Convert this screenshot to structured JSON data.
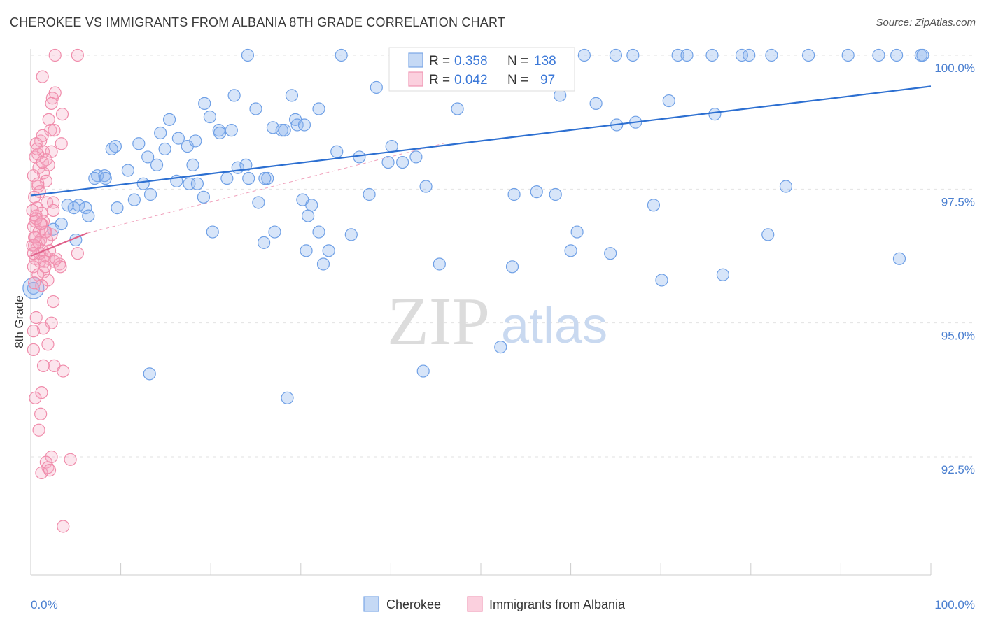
{
  "title": "CHEROKEE VS IMMIGRANTS FROM ALBANIA 8TH GRADE CORRELATION CHART",
  "source": "Source: ZipAtlas.com",
  "watermark": {
    "zip": "ZIP",
    "atlas": "atlas"
  },
  "chart_data": {
    "type": "scatter",
    "title": "CHEROKEE VS IMMIGRANTS FROM ALBANIA 8TH GRADE CORRELATION CHART",
    "xlabel": "",
    "ylabel": "8th Grade",
    "xlim": [
      0,
      100
    ],
    "ylim": [
      90.2,
      100.3
    ],
    "x_tick_labels": [
      "0.0%",
      "100.0%"
    ],
    "y_ticks": [
      92.5,
      95.0,
      97.5,
      100.0
    ],
    "y_tick_labels": [
      "92.5%",
      "95.0%",
      "97.5%",
      "100.0%"
    ],
    "grid": "horizontal-dashed",
    "legend_placement": "top-center",
    "colors": {
      "cherokee": "#6fa0e6",
      "albania": "#f08cab",
      "cherokee_line": "#2c6fd1",
      "albania_line": "#e0608a"
    },
    "stats": [
      {
        "r_label": "R =",
        "r": "0.358",
        "n_label": "N =",
        "n": "138"
      },
      {
        "r_label": "R =",
        "r": "0.042",
        "n_label": "N =",
        "n": "97"
      }
    ],
    "series": [
      {
        "name": "Cherokee",
        "trend": {
          "x": [
            0,
            100
          ],
          "y": [
            97.38,
            99.42
          ]
        },
        "points": [
          [
            0.3,
            95.65
          ],
          [
            5.3,
            97.2
          ],
          [
            4.8,
            97.15
          ],
          [
            4.1,
            97.2
          ],
          [
            3.4,
            96.85
          ],
          [
            2.5,
            96.75
          ],
          [
            6.1,
            97.15
          ],
          [
            6.4,
            97.0
          ],
          [
            7.4,
            97.75
          ],
          [
            5.0,
            96.55
          ],
          [
            7.1,
            97.7
          ],
          [
            8.2,
            97.75
          ],
          [
            8.3,
            97.7
          ],
          [
            9.4,
            98.3
          ],
          [
            9.0,
            98.25
          ],
          [
            9.6,
            97.15
          ],
          [
            10.8,
            97.85
          ],
          [
            11.5,
            97.3
          ],
          [
            12.0,
            98.35
          ],
          [
            12.5,
            97.6
          ],
          [
            13.0,
            98.1
          ],
          [
            13.2,
            94.05
          ],
          [
            13.3,
            97.4
          ],
          [
            14.0,
            97.95
          ],
          [
            14.4,
            98.55
          ],
          [
            14.9,
            98.25
          ],
          [
            15.4,
            98.8
          ],
          [
            16.2,
            97.65
          ],
          [
            16.4,
            98.45
          ],
          [
            17.4,
            98.3
          ],
          [
            17.6,
            97.6
          ],
          [
            18.0,
            97.95
          ],
          [
            18.3,
            98.4
          ],
          [
            19.2,
            97.35
          ],
          [
            19.3,
            99.1
          ],
          [
            19.9,
            98.85
          ],
          [
            20.2,
            96.7
          ],
          [
            20.9,
            98.6
          ],
          [
            21.0,
            98.55
          ],
          [
            21.8,
            97.7
          ],
          [
            22.6,
            99.25
          ],
          [
            23.0,
            97.9
          ],
          [
            23.9,
            97.95
          ],
          [
            24.1,
            100.0
          ],
          [
            24.2,
            97.7
          ],
          [
            25.0,
            99.0
          ],
          [
            25.3,
            97.25
          ],
          [
            25.9,
            96.5
          ],
          [
            26.3,
            97.7
          ],
          [
            26.9,
            98.65
          ],
          [
            27.1,
            96.7
          ],
          [
            27.9,
            98.6
          ],
          [
            28.2,
            98.6
          ],
          [
            28.5,
            93.6
          ],
          [
            29.0,
            99.25
          ],
          [
            29.4,
            98.8
          ],
          [
            29.6,
            98.7
          ],
          [
            30.2,
            97.3
          ],
          [
            30.6,
            96.35
          ],
          [
            30.8,
            97.0
          ],
          [
            31.2,
            97.2
          ],
          [
            32.0,
            96.7
          ],
          [
            32.0,
            99.0
          ],
          [
            32.5,
            96.1
          ],
          [
            33.1,
            96.35
          ],
          [
            34.0,
            98.2
          ],
          [
            35.6,
            96.65
          ],
          [
            37.6,
            97.4
          ],
          [
            38.4,
            99.4
          ],
          [
            39.7,
            98.0
          ],
          [
            41.3,
            98.0
          ],
          [
            42.8,
            98.1
          ],
          [
            43.9,
            97.55
          ],
          [
            44.8,
            100.0
          ],
          [
            46.2,
            100.0
          ],
          [
            47.4,
            99.0
          ],
          [
            48.2,
            100.0
          ],
          [
            49.6,
            100.0
          ],
          [
            51.0,
            100.0
          ],
          [
            52.2,
            94.55
          ],
          [
            52.7,
            100.0
          ],
          [
            53.5,
            96.05
          ],
          [
            53.7,
            97.4
          ],
          [
            56.2,
            97.45
          ],
          [
            57.7,
            100.0
          ],
          [
            58.3,
            97.4
          ],
          [
            58.8,
            99.25
          ],
          [
            60.0,
            96.35
          ],
          [
            60.7,
            96.7
          ],
          [
            61.5,
            100.0
          ],
          [
            62.8,
            99.1
          ],
          [
            64.4,
            96.3
          ],
          [
            65.0,
            100.0
          ],
          [
            65.1,
            98.7
          ],
          [
            66.9,
            100.0
          ],
          [
            67.2,
            98.75
          ],
          [
            69.2,
            97.2
          ],
          [
            70.1,
            95.8
          ],
          [
            70.9,
            99.15
          ],
          [
            71.9,
            100.0
          ],
          [
            72.9,
            100.0
          ],
          [
            75.7,
            100.0
          ],
          [
            76.0,
            98.9
          ],
          [
            76.9,
            95.9
          ],
          [
            79.0,
            100.0
          ],
          [
            79.8,
            100.0
          ],
          [
            81.9,
            96.65
          ],
          [
            82.3,
            100.0
          ],
          [
            83.9,
            97.55
          ],
          [
            86.4,
            100.0
          ],
          [
            90.8,
            100.0
          ],
          [
            94.2,
            100.0
          ],
          [
            96.2,
            100.0
          ],
          [
            96.5,
            96.2
          ],
          [
            98.9,
            100.0
          ],
          [
            99.1,
            100.0
          ],
          [
            45.4,
            96.1
          ],
          [
            40.1,
            98.3
          ],
          [
            36.5,
            98.1
          ],
          [
            43.6,
            94.1
          ],
          [
            34.5,
            100.0
          ],
          [
            30.4,
            98.7
          ],
          [
            26.0,
            97.7
          ],
          [
            22.3,
            98.6
          ],
          [
            18.5,
            97.6
          ]
        ]
      },
      {
        "name": "Immigrants from Albania",
        "trend": {
          "x": [
            0,
            6.3
          ],
          "y": [
            96.25,
            96.68
          ]
        },
        "points": [
          [
            5.2,
            100.0
          ],
          [
            2.7,
            100.0
          ],
          [
            1.3,
            99.6
          ],
          [
            2.7,
            99.3
          ],
          [
            2.4,
            99.2
          ],
          [
            2.3,
            99.1
          ],
          [
            3.5,
            98.9
          ],
          [
            2.0,
            98.8
          ],
          [
            2.2,
            98.6
          ],
          [
            2.6,
            98.6
          ],
          [
            1.1,
            98.4
          ],
          [
            1.3,
            98.5
          ],
          [
            0.6,
            98.35
          ],
          [
            3.4,
            98.35
          ],
          [
            1.4,
            98.2
          ],
          [
            0.8,
            98.15
          ],
          [
            2.3,
            98.2
          ],
          [
            0.5,
            98.1
          ],
          [
            1.7,
            98.05
          ],
          [
            0.9,
            97.9
          ],
          [
            2.0,
            97.95
          ],
          [
            1.4,
            97.8
          ],
          [
            0.3,
            97.75
          ],
          [
            1.7,
            97.65
          ],
          [
            0.8,
            97.55
          ],
          [
            1.0,
            97.45
          ],
          [
            0.4,
            97.35
          ],
          [
            1.8,
            97.25
          ],
          [
            2.5,
            97.25
          ],
          [
            0.7,
            97.15
          ],
          [
            1.2,
            97.05
          ],
          [
            2.5,
            97.1
          ],
          [
            0.6,
            97.0
          ],
          [
            1.4,
            96.9
          ],
          [
            0.5,
            96.9
          ],
          [
            1.2,
            96.85
          ],
          [
            0.3,
            96.8
          ],
          [
            0.9,
            96.7
          ],
          [
            1.7,
            96.7
          ],
          [
            2.3,
            96.65
          ],
          [
            0.4,
            96.6
          ],
          [
            1.1,
            96.55
          ],
          [
            0.2,
            96.45
          ],
          [
            0.7,
            96.4
          ],
          [
            1.3,
            96.35
          ],
          [
            1.6,
            96.25
          ],
          [
            2.0,
            96.2
          ],
          [
            0.5,
            96.2
          ],
          [
            1.0,
            96.15
          ],
          [
            2.6,
            96.15
          ],
          [
            3.2,
            96.1
          ],
          [
            5.2,
            96.3
          ],
          [
            0.3,
            96.05
          ],
          [
            1.4,
            95.95
          ],
          [
            0.8,
            95.9
          ],
          [
            1.9,
            95.8
          ],
          [
            0.4,
            95.75
          ],
          [
            1.2,
            95.7
          ],
          [
            2.5,
            95.4
          ],
          [
            0.6,
            95.1
          ],
          [
            2.3,
            95.0
          ],
          [
            1.4,
            94.9
          ],
          [
            0.3,
            94.85
          ],
          [
            1.9,
            94.6
          ],
          [
            0.3,
            94.5
          ],
          [
            1.4,
            94.2
          ],
          [
            2.6,
            94.2
          ],
          [
            3.6,
            94.1
          ],
          [
            1.2,
            93.7
          ],
          [
            0.5,
            93.6
          ],
          [
            1.1,
            93.3
          ],
          [
            0.9,
            93.0
          ],
          [
            2.3,
            92.5
          ],
          [
            4.4,
            92.45
          ],
          [
            1.7,
            92.4
          ],
          [
            1.9,
            92.3
          ],
          [
            1.2,
            92.2
          ],
          [
            2.1,
            92.25
          ],
          [
            3.6,
            91.2
          ],
          [
            0.9,
            96.5
          ],
          [
            1.6,
            96.7
          ],
          [
            0.6,
            96.95
          ],
          [
            0.4,
            96.45
          ],
          [
            1.0,
            96.3
          ],
          [
            1.5,
            96.15
          ],
          [
            2.1,
            96.35
          ],
          [
            0.2,
            97.1
          ],
          [
            0.8,
            97.6
          ],
          [
            1.3,
            98.0
          ],
          [
            0.7,
            98.25
          ],
          [
            3.3,
            96.05
          ],
          [
            2.8,
            96.2
          ],
          [
            1.8,
            96.55
          ],
          [
            0.5,
            96.6
          ],
          [
            1.1,
            96.85
          ],
          [
            0.3,
            96.3
          ],
          [
            1.6,
            96.05
          ]
        ]
      }
    ]
  }
}
